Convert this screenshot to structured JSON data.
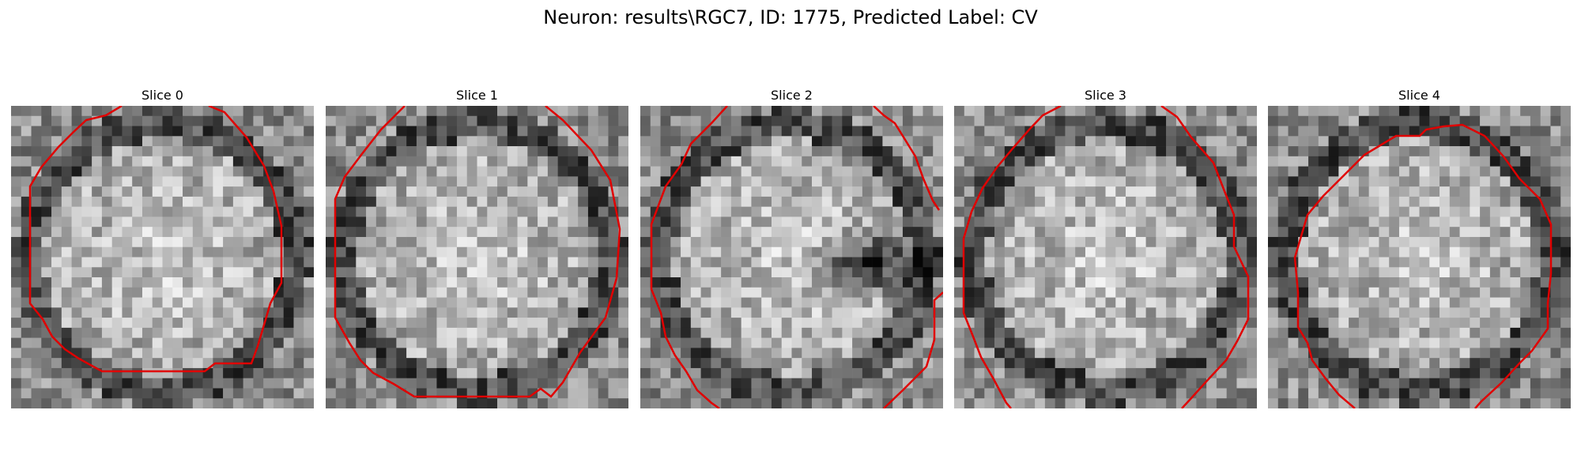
{
  "figure": {
    "title": "Neuron: results\\RGC7, ID: 1775, Predicted Label: CV",
    "contour_color": "#e00000",
    "image_colormap": "gray",
    "panels": [
      {
        "label": "Slice 0",
        "seed": 11,
        "dark_blob": false
      },
      {
        "label": "Slice 1",
        "seed": 23,
        "dark_blob": false
      },
      {
        "label": "Slice 2",
        "seed": 37,
        "dark_blob": true
      },
      {
        "label": "Slice 3",
        "seed": 41,
        "dark_blob": false
      },
      {
        "label": "Slice 4",
        "seed": 59,
        "dark_blob": false
      }
    ]
  }
}
